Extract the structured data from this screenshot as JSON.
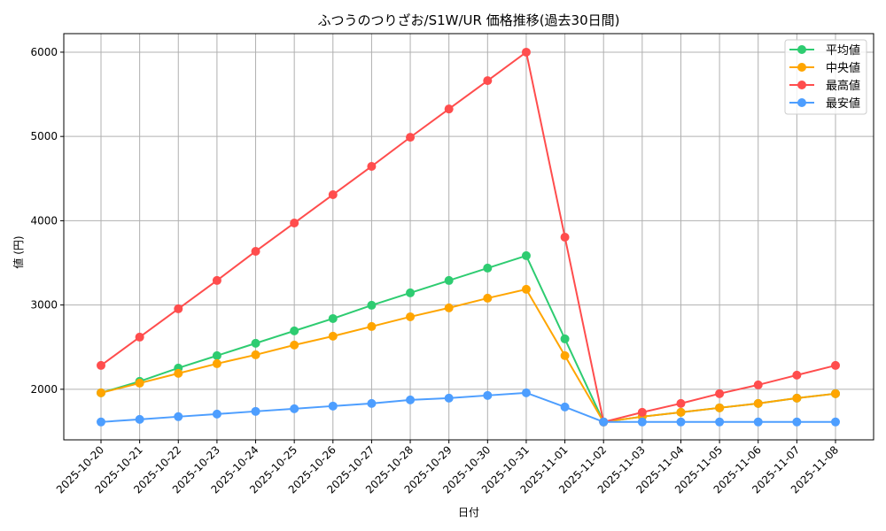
{
  "chart_data": {
    "type": "line",
    "title": "ふつうのつりざお/S1W/UR 価格推移(過去30日間)",
    "xlabel": "日付",
    "ylabel": "値 (円)",
    "ylim": [
      1400,
      6220
    ],
    "yticks": [
      2000,
      3000,
      4000,
      5000,
      6000
    ],
    "grid": true,
    "legend_position": "top-right",
    "x": [
      "2025-10-20",
      "2025-10-21",
      "2025-10-22",
      "2025-10-23",
      "2025-10-24",
      "2025-10-25",
      "2025-10-26",
      "2025-10-27",
      "2025-10-28",
      "2025-10-29",
      "2025-10-30",
      "2025-10-31",
      "2025-11-01",
      "2025-11-02",
      "2025-11-03",
      "2025-11-04",
      "2025-11-05",
      "2025-11-06",
      "2025-11-07",
      "2025-11-08"
    ],
    "series": [
      {
        "name": "平均値",
        "color": "#2ecc71",
        "values": [
          1958,
          2094,
          2252,
          2399,
          2546,
          2693,
          2839,
          2997,
          3144,
          3291,
          3438,
          3585,
          2598,
          1612,
          1675,
          1727,
          1780,
          1832,
          1895,
          1948
        ]
      },
      {
        "name": "中央値",
        "color": "#ffa500",
        "values": [
          1958,
          2073,
          2189,
          2304,
          2409,
          2525,
          2630,
          2745,
          2860,
          2966,
          3081,
          3186,
          2399,
          1612,
          1675,
          1727,
          1780,
          1832,
          1895,
          1948
        ]
      },
      {
        "name": "最高値",
        "color": "#ff4d4d",
        "values": [
          2283,
          2619,
          2955,
          3291,
          3637,
          3973,
          4309,
          4645,
          4990,
          5326,
          5662,
          6000,
          3805,
          1612,
          1727,
          1832,
          1948,
          2052,
          2168,
          2283
        ]
      },
      {
        "name": "最安値",
        "color": "#4d9eff",
        "values": [
          1612,
          1643,
          1675,
          1706,
          1738,
          1769,
          1801,
          1832,
          1874,
          1895,
          1927,
          1958,
          1790,
          1612,
          1612,
          1612,
          1612,
          1612,
          1612,
          1612
        ]
      }
    ]
  }
}
